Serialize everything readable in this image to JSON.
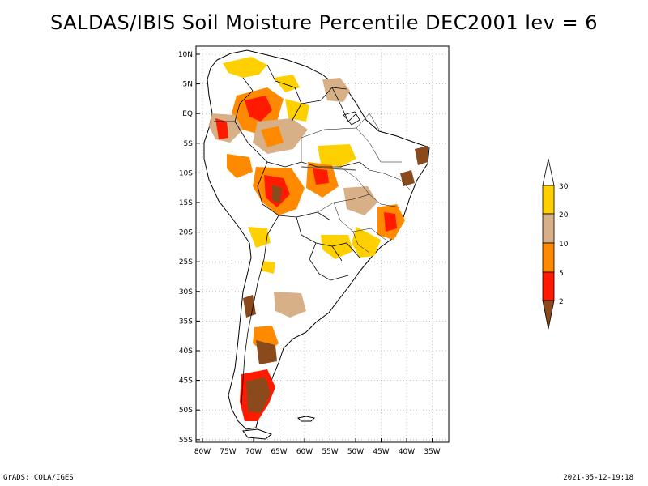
{
  "title": "SALDAS/IBIS Soil Moisture Percentile DEC2001 lev = 6",
  "footer": {
    "left": "GrADS: COLA/IGES",
    "right": "2021-05-12-19:18"
  },
  "map": {
    "lon_range": [
      -80,
      -31
    ],
    "lat_range": [
      -56,
      12
    ],
    "x_ticks": [
      "80W",
      "75W",
      "70W",
      "65W",
      "60W",
      "55W",
      "50W",
      "45W",
      "40W",
      "35W"
    ],
    "y_ticks": [
      "10N",
      "5N",
      "EQ",
      "5S",
      "10S",
      "15S",
      "20S",
      "25S",
      "30S",
      "35S",
      "40S",
      "45S",
      "50S",
      "55S"
    ],
    "grid": "dotted"
  },
  "legend": {
    "labels": [
      "30",
      "20",
      "10",
      "5",
      "2"
    ],
    "colors": {
      "above": "#ffffff",
      "20-30": "#ffd000",
      "10-20": "#d8b088",
      "5-10": "#ff8a00",
      "2-5": "#ff1a00",
      "below": "#8a4a1c"
    }
  },
  "colors": {
    "land_outline": "#000000",
    "grid": "#9a9a9a"
  }
}
